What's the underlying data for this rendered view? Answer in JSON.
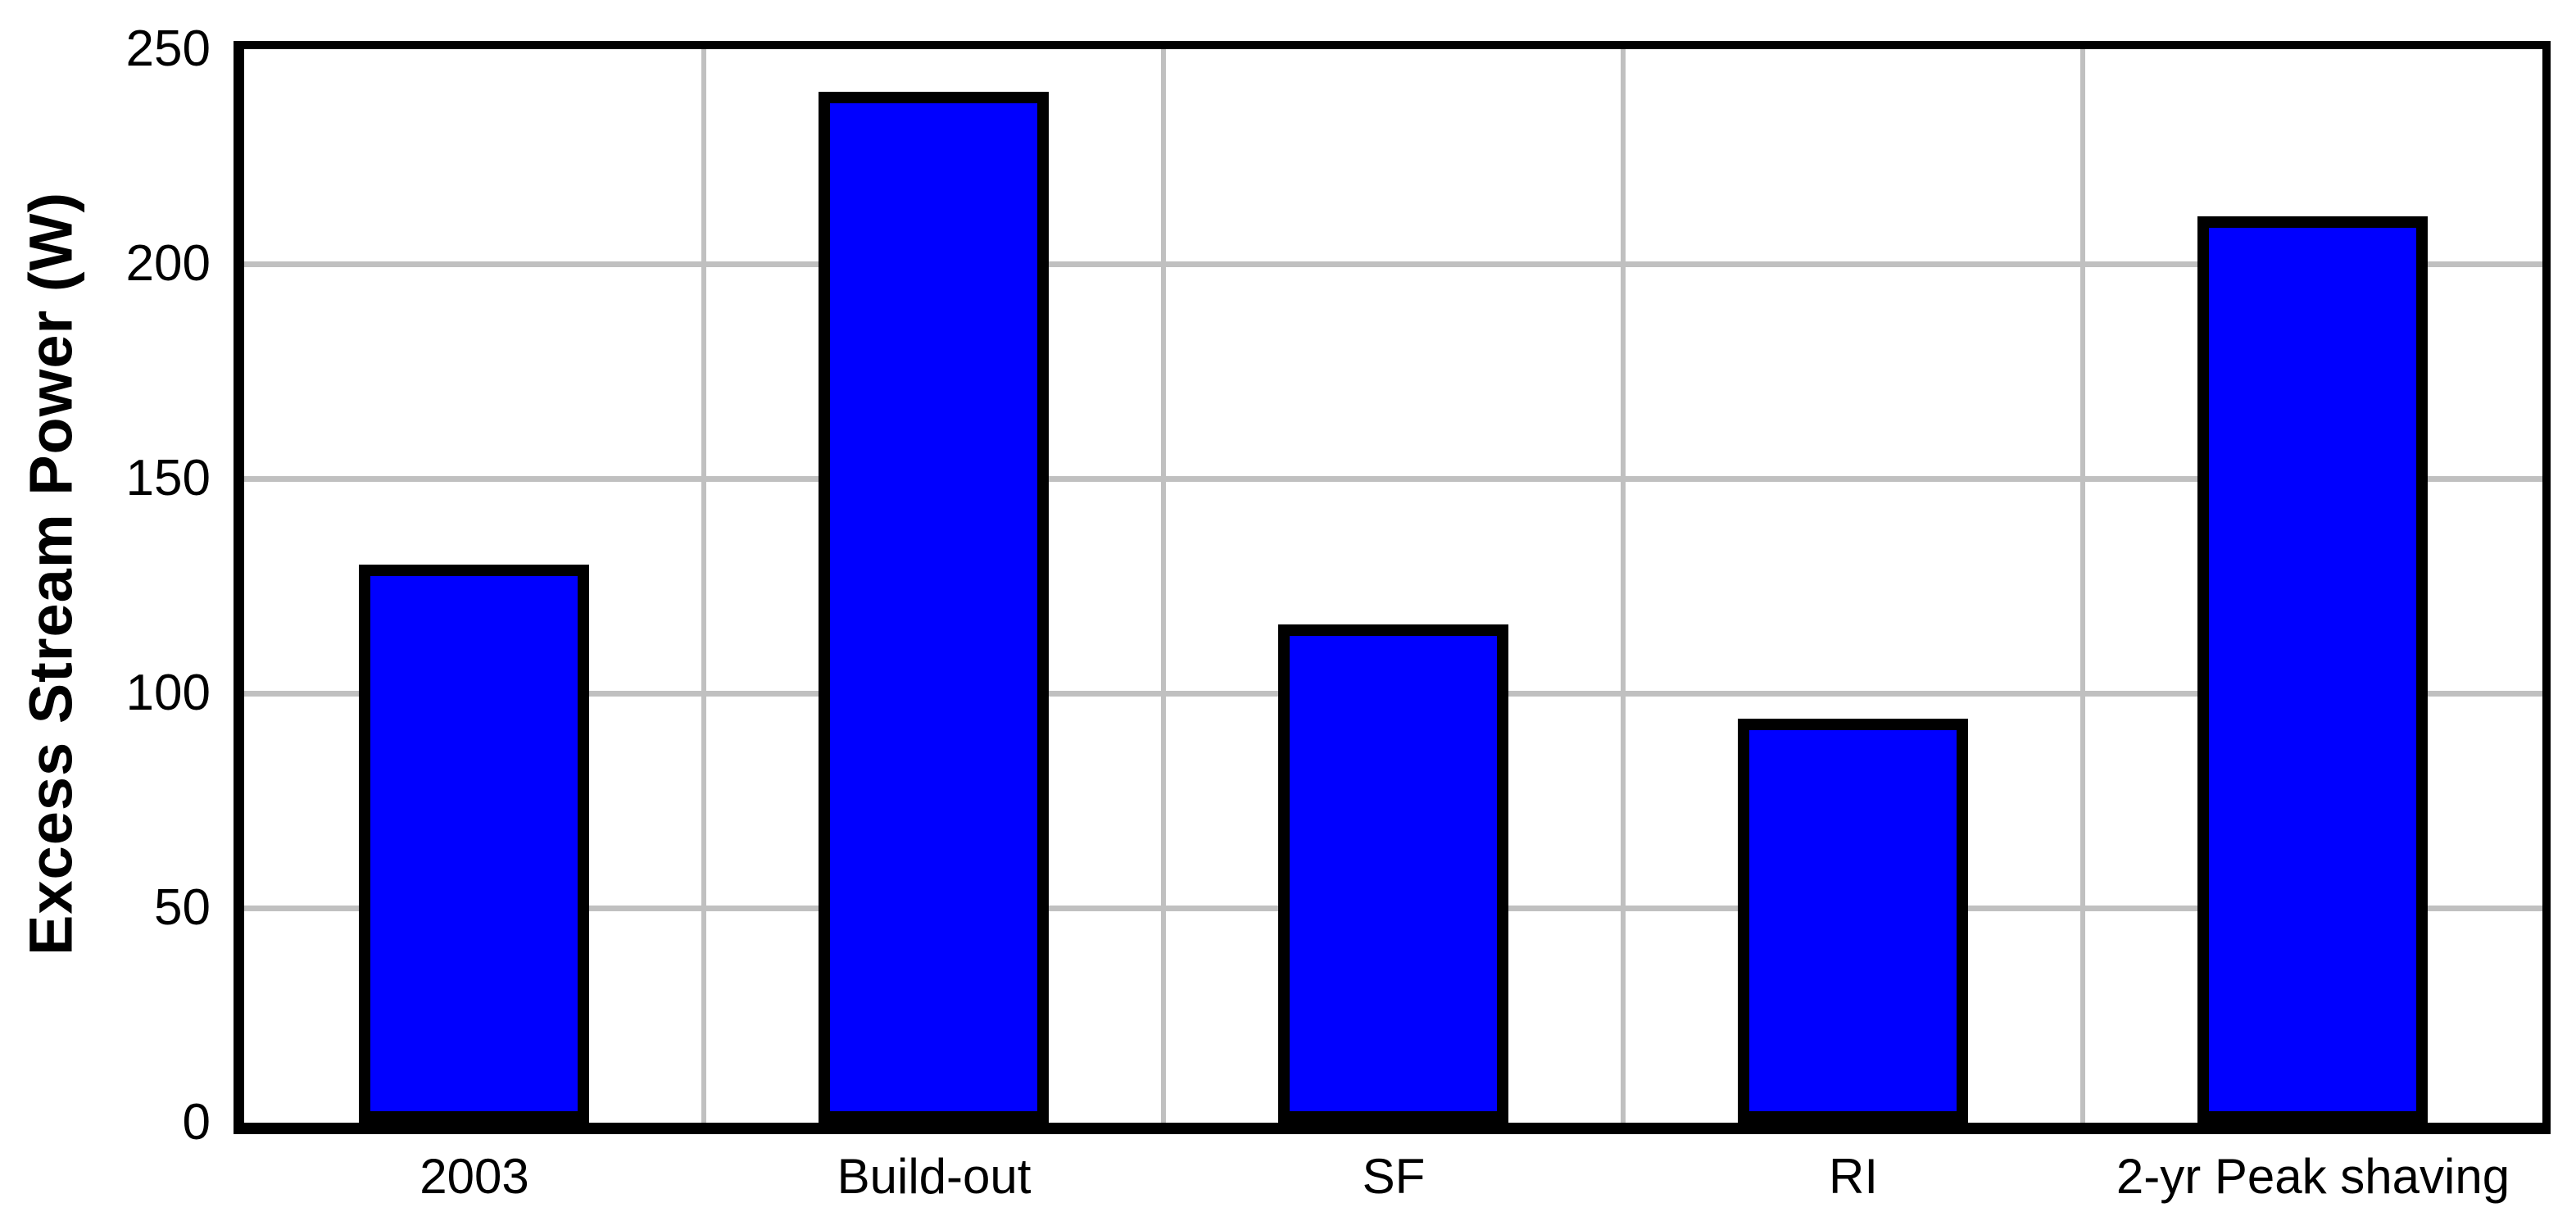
{
  "chart_data": {
    "type": "bar",
    "title": "",
    "xlabel": "",
    "ylabel": "Excess Stream Power (W)",
    "categories": [
      "2003",
      "Build-out",
      "SF",
      "RI",
      "2-yr Peak shaving"
    ],
    "values": [
      130,
      240,
      116,
      94,
      211
    ],
    "ylim": [
      0,
      250
    ],
    "yticks": [
      0,
      50,
      100,
      150,
      200,
      250
    ],
    "grid": true,
    "gridlines_horizontal_at": [
      50,
      100,
      150,
      200
    ],
    "vertical_gridlines_between_categories": true,
    "legend": "none",
    "colors": {
      "bar_fill": "#0000FF",
      "bar_border": "#000000",
      "gridline": "#C0C0C0",
      "axis_frame": "#000000",
      "background": "#FFFFFF",
      "text": "#000000"
    }
  }
}
